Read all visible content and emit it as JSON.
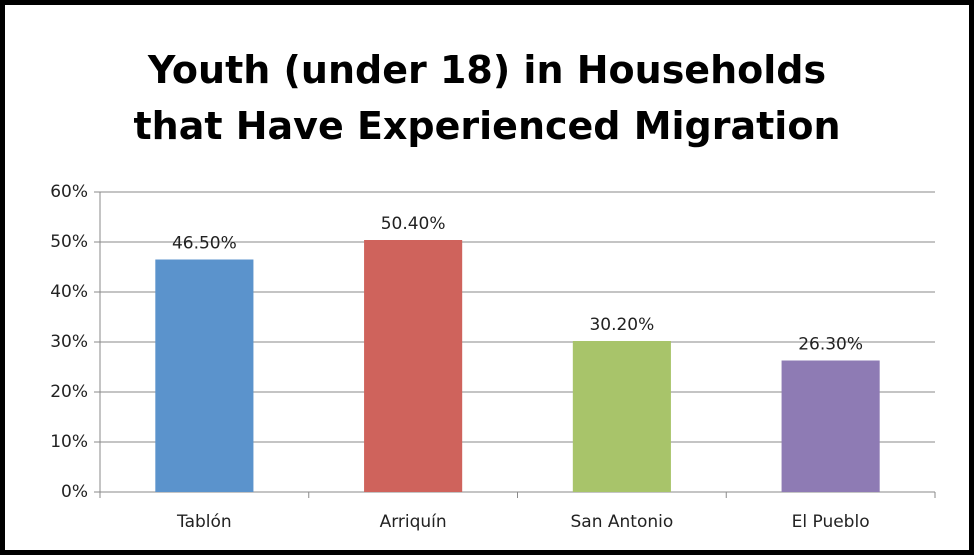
{
  "chart_data": {
    "type": "bar",
    "title": "Youth (under 18) in Households that Have Experienced Migration",
    "categories": [
      "Tablón",
      "Arriquín",
      "San Antonio",
      "El Pueblo"
    ],
    "values": [
      46.5,
      50.4,
      30.2,
      26.3
    ],
    "value_labels": [
      "46.50%",
      "50.40%",
      "30.20%",
      "26.30%"
    ],
    "colors": [
      "#5b93cc",
      "#cf635c",
      "#a8c46a",
      "#8e7bb4"
    ],
    "ylim": [
      0,
      60
    ],
    "yticks": [
      {
        "value": 0,
        "label": "0%"
      },
      {
        "value": 10,
        "label": "10%"
      },
      {
        "value": 20,
        "label": "20%"
      },
      {
        "value": 30,
        "label": "30%"
      },
      {
        "value": 40,
        "label": "40%"
      },
      {
        "value": 50,
        "label": "50%"
      },
      {
        "value": 60,
        "label": "60%"
      }
    ],
    "grid": true
  }
}
